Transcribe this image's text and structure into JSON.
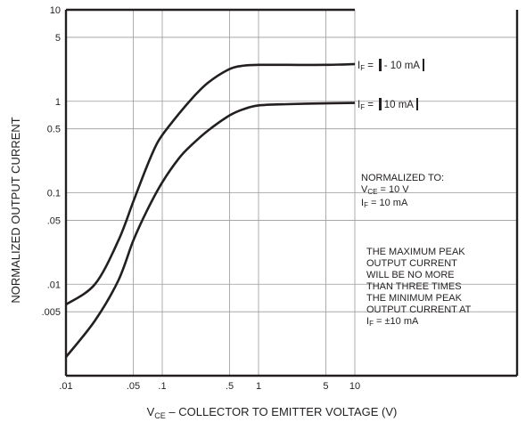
{
  "chart_data": {
    "type": "line",
    "x_scale": "log",
    "y_scale": "log",
    "xlim": [
      0.01,
      10
    ],
    "ylim": [
      0.001,
      10
    ],
    "grid": true,
    "x_ticks": [
      ".01",
      ".05",
      ".1",
      ".5",
      "1",
      "5",
      "10"
    ],
    "x_tick_values": [
      0.01,
      0.05,
      0.1,
      0.5,
      1,
      5,
      10
    ],
    "y_ticks": [
      "10",
      "5",
      "1",
      "0.5",
      "0.1",
      ".05",
      ".01",
      ".005"
    ],
    "y_tick_values": [
      10,
      5,
      1,
      0.5,
      0.1,
      0.05,
      0.01,
      0.005
    ],
    "xlabel_sub": "CE",
    "xlabel_prefix": "V",
    "xlabel_rest": " – COLLECTOR TO EMITTER VOLTAGE (V)",
    "ylabel": "NORMALIZED OUTPUT CURRENT",
    "series": [
      {
        "name": "- 10 mA",
        "x": [
          0.01,
          0.02,
          0.035,
          0.05,
          0.07,
          0.09,
          0.12,
          0.2,
          0.3,
          0.5,
          0.7,
          1,
          2,
          5,
          10
        ],
        "y": [
          0.006,
          0.01,
          0.03,
          0.08,
          0.2,
          0.36,
          0.55,
          1.05,
          1.6,
          2.25,
          2.45,
          2.5,
          2.5,
          2.5,
          2.55
        ]
      },
      {
        "name": "10 mA",
        "x": [
          0.01,
          0.02,
          0.035,
          0.05,
          0.07,
          0.1,
          0.15,
          0.2,
          0.3,
          0.5,
          0.7,
          1,
          2,
          5,
          10
        ],
        "y": [
          0.0016,
          0.004,
          0.011,
          0.03,
          0.065,
          0.13,
          0.24,
          0.33,
          0.48,
          0.7,
          0.82,
          0.9,
          0.93,
          0.95,
          0.96
        ]
      }
    ],
    "curve_labels": [
      {
        "prefix": "I",
        "sub": "F",
        "eq": " = ",
        "value": "- 10 mA"
      },
      {
        "prefix": "I",
        "sub": "F",
        "eq": " = ",
        "value": "10 mA"
      }
    ],
    "normalized_note": {
      "title": "NORMALIZED TO:",
      "line1_prefix": "V",
      "line1_sub": "CE",
      "line1_rest": " = 10 V",
      "line2_prefix": "I",
      "line2_sub": "F",
      "line2_rest": " = 10 mA"
    },
    "max_note": {
      "lines": [
        "THE MAXIMUM PEAK",
        "OUTPUT CURRENT",
        "WILL BE NO MORE",
        "THAN THREE TIMES",
        "THE MINIMUM PEAK",
        "OUTPUT CURRENT AT"
      ],
      "last_prefix": "I",
      "last_sub": "F",
      "last_rest": " = ±10 mA"
    },
    "colors": {
      "ink": "#231f20",
      "grid": "#9a9a9a",
      "background": "#ffffff"
    }
  }
}
